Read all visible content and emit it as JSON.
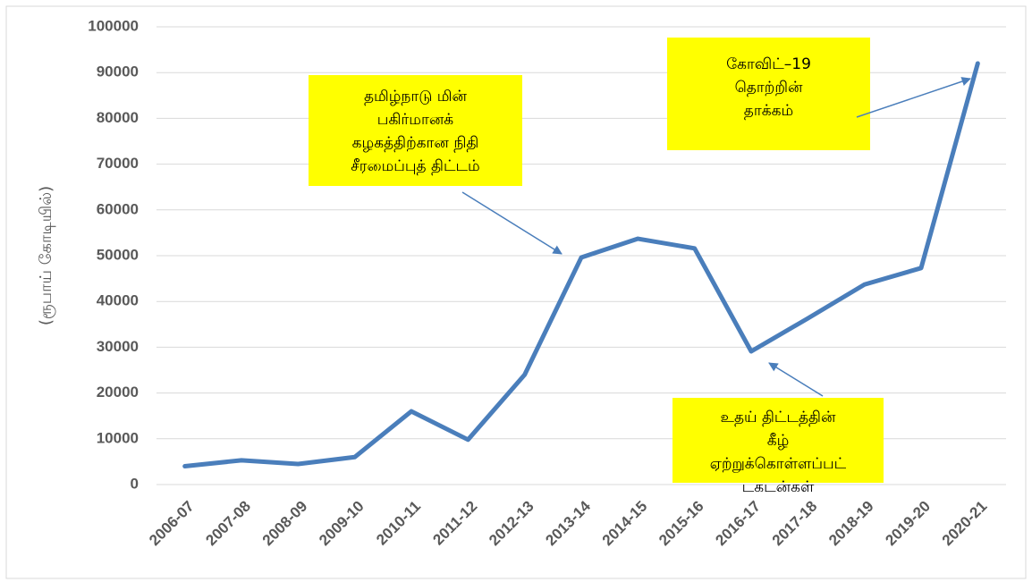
{
  "chart_data": {
    "type": "line",
    "ylabel": "(ரூபாய் கோடியில்)",
    "categories": [
      "2006-07",
      "2007-08",
      "2008-09",
      "2009-10",
      "2010-11",
      "2011-12",
      "2012-13",
      "2013-14",
      "2014-15",
      "2015-16",
      "2016-17",
      "2017-18",
      "2018-19",
      "2019-20",
      "2020-21"
    ],
    "values": [
      4000,
      5300,
      4500,
      6000,
      16000,
      9800,
      24000,
      49600,
      53700,
      51600,
      29100,
      36300,
      43700,
      47300,
      92000
    ],
    "color": "#4a7ebb",
    "ylim": [
      0,
      100000
    ],
    "yticks": [
      0,
      10000,
      20000,
      30000,
      40000,
      50000,
      60000,
      70000,
      80000,
      90000,
      100000
    ],
    "grid": true,
    "annotations": [
      {
        "lines": [
          "தமிழ்நாடு மின்",
          "பகிர்மானக்",
          "கழகத்திற்கான நிதி",
          "சீரமைப்புத் திட்டம்"
        ]
      },
      {
        "lines": [
          "கோவிட்–19",
          "தொற்றின்",
          "தாக்கம்"
        ]
      },
      {
        "lines": [
          "உதய் திட்டத்தின்",
          "கீழ்",
          "ஏற்றுக்கொள்ளப்பட்",
          "டகடன்கள்"
        ]
      }
    ]
  }
}
